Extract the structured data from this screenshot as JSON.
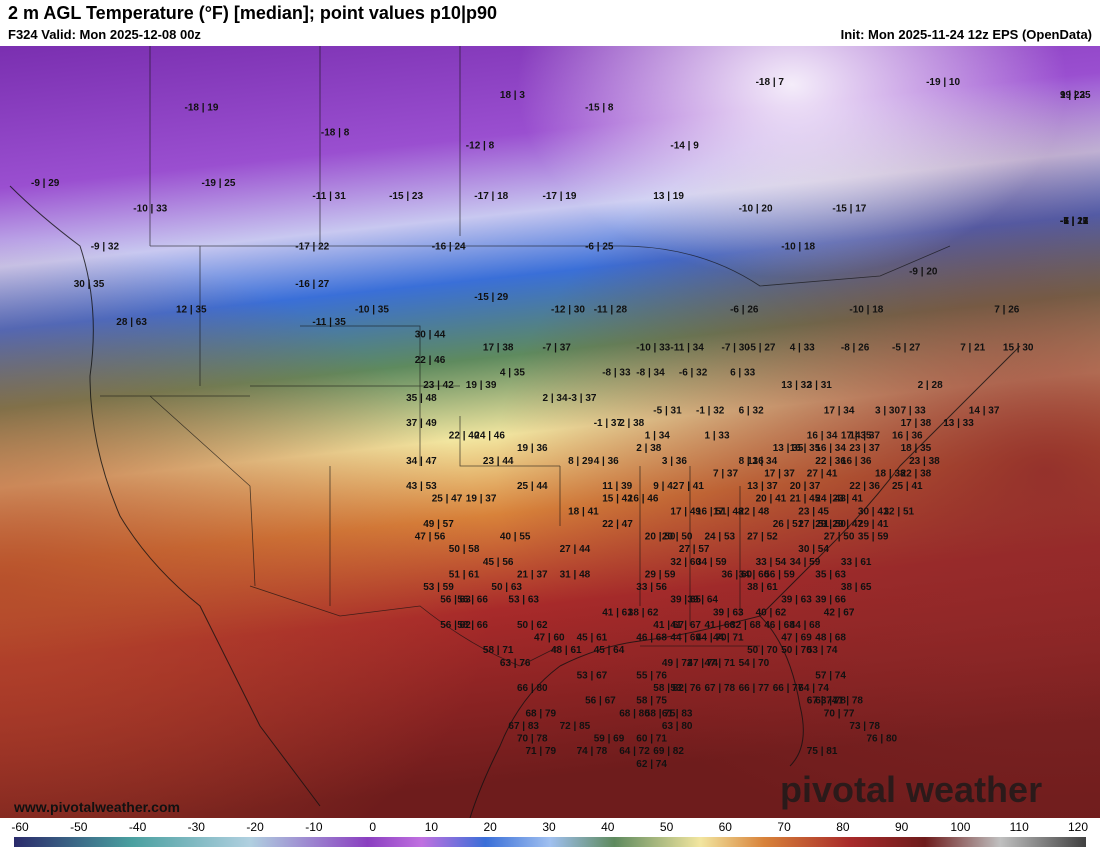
{
  "header": {
    "title": "2 m AGL Temperature (°F) [median]; point values p10|p90",
    "valid": "F324 Valid: Mon 2025-12-08 00z",
    "init": "Init: Mon 2025-11-24 12z EPS (OpenData)"
  },
  "watermark": "pivotal weather",
  "site_url": "www.pivotalweather.com",
  "colorbar": {
    "ticks": [
      "-60",
      "-50",
      "-40",
      "-30",
      "-20",
      "-10",
      "0",
      "10",
      "20",
      "30",
      "40",
      "50",
      "60",
      "70",
      "80",
      "90",
      "100",
      "110",
      "120"
    ],
    "min": -60,
    "max": 120
  },
  "colors": {
    "cold_purple": "#8a3fc0",
    "blue": "#3a6fd8",
    "green": "#5e8a5e",
    "yellow": "#f2e6a0",
    "orange": "#d8823a",
    "red": "#a82a2a",
    "dark_red": "#6e1c1c"
  },
  "point_values": [
    {
      "t": "-18 | 19",
      "x": -150,
      "y": 66
    },
    {
      "t": "-18 | 8",
      "x": -134,
      "y": 64
    },
    {
      "t": "18 | 3",
      "x": -113,
      "y": 67
    },
    {
      "t": "-15 | 8",
      "x": -103,
      "y": 66
    },
    {
      "t": "-18 | 7",
      "x": -83,
      "y": 68
    },
    {
      "t": "-19 | 10",
      "x": -63,
      "y": 68
    },
    {
      "t": "19 | 25",
      "x": -33,
      "y": 67
    },
    {
      "t": "9 | 23",
      "x": -27,
      "y": 67
    },
    {
      "t": "-9 | 29",
      "x": -168,
      "y": 60
    },
    {
      "t": "-19 | 25",
      "x": -148,
      "y": 60
    },
    {
      "t": "-12 | 8",
      "x": -117,
      "y": 63
    },
    {
      "t": "-14 | 9",
      "x": -93,
      "y": 63
    },
    {
      "t": "-10 | 33",
      "x": -156,
      "y": 58
    },
    {
      "t": "-11 | 31",
      "x": -135,
      "y": 59
    },
    {
      "t": "-15 | 23",
      "x": -126,
      "y": 59
    },
    {
      "t": "-17 | 18",
      "x": -116,
      "y": 59
    },
    {
      "t": "-17 | 19",
      "x": -108,
      "y": 59
    },
    {
      "t": "13 | 19",
      "x": -95,
      "y": 59
    },
    {
      "t": "-10 | 20",
      "x": -85,
      "y": 58
    },
    {
      "t": "-15 | 17",
      "x": -74,
      "y": 58
    },
    {
      "t": "-1 | 21",
      "x": -46,
      "y": 57
    },
    {
      "t": "-5 | 17",
      "x": -35,
      "y": 57
    },
    {
      "t": "-6 | 16",
      "x": -28,
      "y": 57
    },
    {
      "t": "-7 | 12",
      "x": -15,
      "y": 57
    },
    {
      "t": "-9 | 32",
      "x": -161,
      "y": 55
    },
    {
      "t": "-17 | 22",
      "x": -137,
      "y": 55
    },
    {
      "t": "-16 | 24",
      "x": -121,
      "y": 55
    },
    {
      "t": "-6 | 25",
      "x": -103,
      "y": 55
    },
    {
      "t": "-10 | 18",
      "x": -80,
      "y": 55
    },
    {
      "t": "30 | 35",
      "x": -163,
      "y": 52
    },
    {
      "t": "-16 | 27",
      "x": -137,
      "y": 52
    },
    {
      "t": "-15 | 29",
      "x": -116,
      "y": 51
    },
    {
      "t": "-9 | 20",
      "x": -65,
      "y": 53
    },
    {
      "t": "12 | 35",
      "x": -151,
      "y": 50
    },
    {
      "t": "-10 | 35",
      "x": -130,
      "y": 50
    },
    {
      "t": "-12 | 30",
      "x": -107,
      "y": 50
    },
    {
      "t": "-11 | 28",
      "x": -102,
      "y": 50
    },
    {
      "t": "-6 | 26",
      "x": -86,
      "y": 50
    },
    {
      "t": "-10 | 18",
      "x": -72,
      "y": 50
    },
    {
      "t": "7 | 26",
      "x": -55,
      "y": 50
    },
    {
      "t": "28 | 63",
      "x": -158,
      "y": 49
    },
    {
      "t": "-11 | 35",
      "x": -135,
      "y": 49
    },
    {
      "t": "30 | 44",
      "x": -123,
      "y": 48
    },
    {
      "t": "17 | 38",
      "x": -115,
      "y": 47
    },
    {
      "t": "-7 | 37",
      "x": -108,
      "y": 47
    },
    {
      "t": "-10 | 33",
      "x": -97,
      "y": 47
    },
    {
      "t": "-11 | 34",
      "x": -93,
      "y": 47
    },
    {
      "t": "-7 | 30",
      "x": -87,
      "y": 47
    },
    {
      "t": "-5 | 27",
      "x": -84,
      "y": 47
    },
    {
      "t": "4 | 33",
      "x": -79,
      "y": 47
    },
    {
      "t": "-8 | 26",
      "x": -73,
      "y": 47
    },
    {
      "t": "-5 | 27",
      "x": -67,
      "y": 47
    },
    {
      "t": "7 | 21",
      "x": -59,
      "y": 47
    },
    {
      "t": "15 | 30",
      "x": -54,
      "y": 47
    },
    {
      "t": "22 | 46",
      "x": -123,
      "y": 46
    },
    {
      "t": "4 | 35",
      "x": -113,
      "y": 45
    },
    {
      "t": "-8 | 33",
      "x": -101,
      "y": 45
    },
    {
      "t": "-8 | 34",
      "x": -97,
      "y": 45
    },
    {
      "t": "-6 | 32",
      "x": -92,
      "y": 45
    },
    {
      "t": "6 | 33",
      "x": -86,
      "y": 45
    },
    {
      "t": "13 | 32",
      "x": -80,
      "y": 44
    },
    {
      "t": "3 | 31",
      "x": -77,
      "y": 44
    },
    {
      "t": "2 | 28",
      "x": -64,
      "y": 44
    },
    {
      "t": "23 | 42",
      "x": -122,
      "y": 44
    },
    {
      "t": "19 | 39",
      "x": -117,
      "y": 44
    },
    {
      "t": "2 | 34",
      "x": -108,
      "y": 43
    },
    {
      "t": "-3 | 37",
      "x": -105,
      "y": 43
    },
    {
      "t": "-5 | 31",
      "x": -95,
      "y": 42
    },
    {
      "t": "-1 | 32",
      "x": -90,
      "y": 42
    },
    {
      "t": "3 | 30",
      "x": -69,
      "y": 42
    },
    {
      "t": "7 | 33",
      "x": -66,
      "y": 42
    },
    {
      "t": "14 | 37",
      "x": -58,
      "y": 42
    },
    {
      "t": "35 | 48",
      "x": -124,
      "y": 43
    },
    {
      "t": "6 | 32",
      "x": -85,
      "y": 42
    },
    {
      "t": "17 | 34",
      "x": -75,
      "y": 42
    },
    {
      "t": "13 | 33",
      "x": -61,
      "y": 41
    },
    {
      "t": "37 | 49",
      "x": -124,
      "y": 41
    },
    {
      "t": "-1 | 37",
      "x": -102,
      "y": 41
    },
    {
      "t": "2 | 38",
      "x": -99,
      "y": 41
    },
    {
      "t": "1 | 33",
      "x": -89,
      "y": 40
    },
    {
      "t": "14 | 37",
      "x": -72,
      "y": 40
    },
    {
      "t": "17 | 38",
      "x": -66,
      "y": 41
    },
    {
      "t": "22 | 40",
      "x": -119,
      "y": 40
    },
    {
      "t": "24 | 46",
      "x": -116,
      "y": 40
    },
    {
      "t": "1 | 34",
      "x": -96,
      "y": 40
    },
    {
      "t": "17 | 35",
      "x": -73,
      "y": 40
    },
    {
      "t": "16 | 34",
      "x": -77,
      "y": 40
    },
    {
      "t": "16 | 36",
      "x": -67,
      "y": 40
    },
    {
      "t": "19 | 36",
      "x": -111,
      "y": 39
    },
    {
      "t": "2 | 38",
      "x": -97,
      "y": 39
    },
    {
      "t": "13 | 35",
      "x": -81,
      "y": 39
    },
    {
      "t": "16 | 35",
      "x": -79,
      "y": 39
    },
    {
      "t": "16 | 34",
      "x": -76,
      "y": 39
    },
    {
      "t": "23 | 37",
      "x": -72,
      "y": 39
    },
    {
      "t": "18 | 35",
      "x": -66,
      "y": 39
    },
    {
      "t": "34 | 47",
      "x": -124,
      "y": 38
    },
    {
      "t": "23 | 44",
      "x": -115,
      "y": 38
    },
    {
      "t": "8 | 29",
      "x": -105,
      "y": 38
    },
    {
      "t": "4 | 36",
      "x": -102,
      "y": 38
    },
    {
      "t": "3 | 36",
      "x": -94,
      "y": 38
    },
    {
      "t": "11 | 34",
      "x": -84,
      "y": 38
    },
    {
      "t": "22 | 36",
      "x": -76,
      "y": 38
    },
    {
      "t": "16 | 36",
      "x": -73,
      "y": 38
    },
    {
      "t": "23 | 38",
      "x": -65,
      "y": 38
    },
    {
      "t": "8 | 36",
      "x": -85,
      "y": 38
    },
    {
      "t": "17 | 37",
      "x": -82,
      "y": 37
    },
    {
      "t": "22 | 38",
      "x": -66,
      "y": 37
    },
    {
      "t": "7 | 37",
      "x": -88,
      "y": 37
    },
    {
      "t": "27 | 41",
      "x": -77,
      "y": 37
    },
    {
      "t": "18 | 38",
      "x": -69,
      "y": 37
    },
    {
      "t": "43 | 53",
      "x": -124,
      "y": 36
    },
    {
      "t": "25 | 44",
      "x": -111,
      "y": 36
    },
    {
      "t": "11 | 39",
      "x": -101,
      "y": 36
    },
    {
      "t": "9 | 42",
      "x": -95,
      "y": 36
    },
    {
      "t": "7 | 41",
      "x": -92,
      "y": 36
    },
    {
      "t": "13 | 37",
      "x": -84,
      "y": 36
    },
    {
      "t": "20 | 37",
      "x": -79,
      "y": 36
    },
    {
      "t": "22 | 36",
      "x": -72,
      "y": 36
    },
    {
      "t": "25 | 41",
      "x": -67,
      "y": 36
    },
    {
      "t": "23 | 41",
      "x": -74,
      "y": 35
    },
    {
      "t": "25 | 47",
      "x": -121,
      "y": 35
    },
    {
      "t": "19 | 37",
      "x": -117,
      "y": 35
    },
    {
      "t": "15 | 42",
      "x": -101,
      "y": 35
    },
    {
      "t": "16 | 46",
      "x": -98,
      "y": 35
    },
    {
      "t": "20 | 41",
      "x": -83,
      "y": 35
    },
    {
      "t": "21 | 45",
      "x": -79,
      "y": 35
    },
    {
      "t": "24 | 43",
      "x": -76,
      "y": 35
    },
    {
      "t": "30 | 41",
      "x": -71,
      "y": 34
    },
    {
      "t": "32 | 51",
      "x": -68,
      "y": 34
    },
    {
      "t": "18 | 41",
      "x": -105,
      "y": 34
    },
    {
      "t": "17 | 49",
      "x": -93,
      "y": 34
    },
    {
      "t": "16 | 51",
      "x": -90,
      "y": 34
    },
    {
      "t": "17 | 48",
      "x": -88,
      "y": 34
    },
    {
      "t": "22 | 48",
      "x": -85,
      "y": 34
    },
    {
      "t": "23 | 45",
      "x": -78,
      "y": 34
    },
    {
      "t": "49 | 57",
      "x": -122,
      "y": 33
    },
    {
      "t": "22 | 47",
      "x": -101,
      "y": 33
    },
    {
      "t": "29 | 50",
      "x": -76,
      "y": 33
    },
    {
      "t": "29 | 47",
      "x": -74,
      "y": 33
    },
    {
      "t": "29 | 41",
      "x": -71,
      "y": 33
    },
    {
      "t": "26 | 51",
      "x": -81,
      "y": 33
    },
    {
      "t": "27 | 51",
      "x": -78,
      "y": 33
    },
    {
      "t": "20 | 50",
      "x": -96,
      "y": 32
    },
    {
      "t": "20 | 50",
      "x": -94,
      "y": 32
    },
    {
      "t": "24 | 53",
      "x": -89,
      "y": 32
    },
    {
      "t": "27 | 52",
      "x": -84,
      "y": 32
    },
    {
      "t": "27 | 50",
      "x": -75,
      "y": 32
    },
    {
      "t": "35 | 59",
      "x": -71,
      "y": 32
    },
    {
      "t": "47 | 56",
      "x": -123,
      "y": 32
    },
    {
      "t": "40 | 55",
      "x": -113,
      "y": 32
    },
    {
      "t": "27 | 44",
      "x": -106,
      "y": 31
    },
    {
      "t": "30 | 54",
      "x": -78,
      "y": 31
    },
    {
      "t": "50 | 58",
      "x": -119,
      "y": 31
    },
    {
      "t": "27 | 57",
      "x": -92,
      "y": 31
    },
    {
      "t": "33 | 54",
      "x": -83,
      "y": 30
    },
    {
      "t": "34 | 59",
      "x": -79,
      "y": 30
    },
    {
      "t": "33 | 61",
      "x": -73,
      "y": 30
    },
    {
      "t": "45 | 56",
      "x": -115,
      "y": 30
    },
    {
      "t": "32 | 60",
      "x": -93,
      "y": 30
    },
    {
      "t": "34 | 59",
      "x": -90,
      "y": 30
    },
    {
      "t": "34 | 60",
      "x": -85,
      "y": 29
    },
    {
      "t": "35 | 63",
      "x": -76,
      "y": 29
    },
    {
      "t": "51 | 61",
      "x": -119,
      "y": 29
    },
    {
      "t": "21 | 37",
      "x": -111,
      "y": 29
    },
    {
      "t": "31 | 48",
      "x": -106,
      "y": 29
    },
    {
      "t": "29 | 59",
      "x": -96,
      "y": 29
    },
    {
      "t": "36 | 60",
      "x": -87,
      "y": 29
    },
    {
      "t": "56 | 59",
      "x": -82,
      "y": 29
    },
    {
      "t": "38 | 65",
      "x": -73,
      "y": 28
    },
    {
      "t": "53 | 59",
      "x": -122,
      "y": 28
    },
    {
      "t": "50 | 63",
      "x": -114,
      "y": 28
    },
    {
      "t": "33 | 56",
      "x": -97,
      "y": 28
    },
    {
      "t": "38 | 61",
      "x": -84,
      "y": 28
    },
    {
      "t": "39 | 65",
      "x": -93,
      "y": 27
    },
    {
      "t": "39 | 64",
      "x": -91,
      "y": 27
    },
    {
      "t": "39 | 63",
      "x": -80,
      "y": 27
    },
    {
      "t": "39 | 66",
      "x": -76,
      "y": 27
    },
    {
      "t": "56 | 63",
      "x": -120,
      "y": 27
    },
    {
      "t": "56 | 66",
      "x": -118,
      "y": 27
    },
    {
      "t": "53 | 63",
      "x": -112,
      "y": 27
    },
    {
      "t": "41 | 61",
      "x": -101,
      "y": 26
    },
    {
      "t": "38 | 62",
      "x": -98,
      "y": 26
    },
    {
      "t": "39 | 63",
      "x": -88,
      "y": 26
    },
    {
      "t": "40 | 62",
      "x": -83,
      "y": 26
    },
    {
      "t": "42 | 67",
      "x": -75,
      "y": 26
    },
    {
      "t": "56 | 62",
      "x": -120,
      "y": 25
    },
    {
      "t": "58 | 66",
      "x": -118,
      "y": 25
    },
    {
      "t": "50 | 62",
      "x": -111,
      "y": 25
    },
    {
      "t": "41 | 67",
      "x": -95,
      "y": 25
    },
    {
      "t": "41 | 67",
      "x": -93,
      "y": 25
    },
    {
      "t": "41 | 66",
      "x": -89,
      "y": 25
    },
    {
      "t": "32 | 68",
      "x": -86,
      "y": 25
    },
    {
      "t": "46 | 68",
      "x": -82,
      "y": 25
    },
    {
      "t": "44 | 68",
      "x": -79,
      "y": 25
    },
    {
      "t": "48 | 68",
      "x": -76,
      "y": 24
    },
    {
      "t": "47 | 69",
      "x": -80,
      "y": 24
    },
    {
      "t": "46 | 68",
      "x": -97,
      "y": 24
    },
    {
      "t": "45 | 61",
      "x": -104,
      "y": 24
    },
    {
      "t": "47 | 60",
      "x": -109,
      "y": 24
    },
    {
      "t": "44 | 69",
      "x": -93,
      "y": 24
    },
    {
      "t": "44 | 70",
      "x": -90,
      "y": 24
    },
    {
      "t": "44 | 71",
      "x": -88,
      "y": 24
    },
    {
      "t": "58 | 71",
      "x": -115,
      "y": 23
    },
    {
      "t": "48 | 61",
      "x": -107,
      "y": 23
    },
    {
      "t": "45 | 64",
      "x": -102,
      "y": 23
    },
    {
      "t": "50 | 70",
      "x": -84,
      "y": 23
    },
    {
      "t": "50 | 70",
      "x": -80,
      "y": 23
    },
    {
      "t": "53 | 74",
      "x": -77,
      "y": 23
    },
    {
      "t": "47 | 74",
      "x": -91,
      "y": 22
    },
    {
      "t": "47 | 71",
      "x": -89,
      "y": 22
    },
    {
      "t": "54 | 70",
      "x": -85,
      "y": 22
    },
    {
      "t": "49 | 72",
      "x": -94,
      "y": 22
    },
    {
      "t": "63 | 76",
      "x": -113,
      "y": 22
    },
    {
      "t": "53 | 67",
      "x": -104,
      "y": 21
    },
    {
      "t": "55 | 76",
      "x": -97,
      "y": 21
    },
    {
      "t": "57 | 74",
      "x": -76,
      "y": 21
    },
    {
      "t": "53 | 76",
      "x": -93,
      "y": 20
    },
    {
      "t": "67 | 78",
      "x": -89,
      "y": 20
    },
    {
      "t": "66 | 77",
      "x": -85,
      "y": 20
    },
    {
      "t": "66 | 77",
      "x": -81,
      "y": 20
    },
    {
      "t": "64 | 74",
      "x": -78,
      "y": 20
    },
    {
      "t": "66 | 80",
      "x": -111,
      "y": 20
    },
    {
      "t": "58 | 82",
      "x": -95,
      "y": 20
    },
    {
      "t": "63 | 78",
      "x": -76,
      "y": 19
    },
    {
      "t": "56 | 67",
      "x": -103,
      "y": 19
    },
    {
      "t": "58 | 75",
      "x": -97,
      "y": 19
    },
    {
      "t": "67 | 74",
      "x": -77,
      "y": 19
    },
    {
      "t": "71 | 78",
      "x": -74,
      "y": 19
    },
    {
      "t": "68 | 79",
      "x": -110,
      "y": 18
    },
    {
      "t": "61 | 83",
      "x": -94,
      "y": 18
    },
    {
      "t": "68 | 80",
      "x": -99,
      "y": 18
    },
    {
      "t": "58 | 75",
      "x": -96,
      "y": 18
    },
    {
      "t": "70 | 77",
      "x": -75,
      "y": 18
    },
    {
      "t": "67 | 83",
      "x": -112,
      "y": 17
    },
    {
      "t": "72 | 85",
      "x": -106,
      "y": 17
    },
    {
      "t": "63 | 80",
      "x": -94,
      "y": 17
    },
    {
      "t": "73 | 78",
      "x": -72,
      "y": 17
    },
    {
      "t": "70 | 78",
      "x": -111,
      "y": 16
    },
    {
      "t": "59 | 69",
      "x": -102,
      "y": 16
    },
    {
      "t": "60 | 71",
      "x": -97,
      "y": 16
    },
    {
      "t": "76 | 80",
      "x": -70,
      "y": 16
    },
    {
      "t": "71 | 79",
      "x": -110,
      "y": 15
    },
    {
      "t": "74 | 78",
      "x": -104,
      "y": 15
    },
    {
      "t": "64 | 72",
      "x": -99,
      "y": 15
    },
    {
      "t": "69 | 82",
      "x": -95,
      "y": 15
    },
    {
      "t": "75 | 81",
      "x": -77,
      "y": 15
    },
    {
      "t": "62 | 74",
      "x": -97,
      "y": 14
    }
  ]
}
